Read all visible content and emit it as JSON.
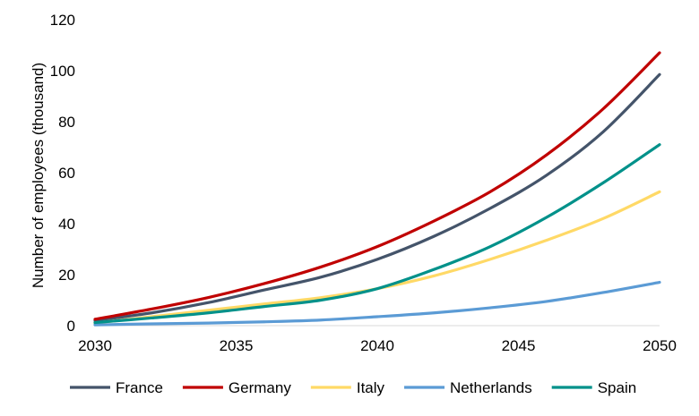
{
  "chart_data": {
    "type": "line",
    "title": "",
    "xlabel": "",
    "ylabel": "Number of employees (thousand)",
    "xlim": [
      2030,
      2050
    ],
    "ylim": [
      0,
      120
    ],
    "x_ticks": [
      2030,
      2035,
      2040,
      2045,
      2050
    ],
    "y_ticks": [
      0,
      20,
      40,
      60,
      80,
      100,
      120
    ],
    "grid": false,
    "legend_position": "bottom",
    "x": [
      2030,
      2032,
      2034,
      2036,
      2038,
      2040,
      2042,
      2044,
      2046,
      2048,
      2050
    ],
    "series": [
      {
        "name": "France",
        "color": "#44546a",
        "values": [
          2.0,
          5.0,
          9.0,
          14.0,
          19.0,
          26.0,
          35.0,
          46.0,
          59.0,
          76.0,
          98.5
        ]
      },
      {
        "name": "Germany",
        "color": "#c00000",
        "values": [
          2.5,
          6.5,
          11.0,
          16.5,
          23.0,
          31.0,
          41.0,
          52.5,
          67.0,
          85.0,
          107.0
        ]
      },
      {
        "name": "Italy",
        "color": "#ffd966",
        "values": [
          1.0,
          3.5,
          6.0,
          8.5,
          11.0,
          14.5,
          19.5,
          26.0,
          33.5,
          42.0,
          52.5
        ]
      },
      {
        "name": "Netherlands",
        "color": "#5b9bd5",
        "values": [
          0.3,
          0.7,
          1.0,
          1.5,
          2.2,
          3.5,
          5.0,
          7.0,
          9.5,
          13.0,
          17.0
        ]
      },
      {
        "name": "Spain",
        "color": "#00918a",
        "values": [
          1.2,
          3.0,
          5.0,
          7.5,
          10.0,
          14.5,
          22.0,
          31.0,
          42.5,
          56.0,
          71.0
        ]
      }
    ]
  }
}
